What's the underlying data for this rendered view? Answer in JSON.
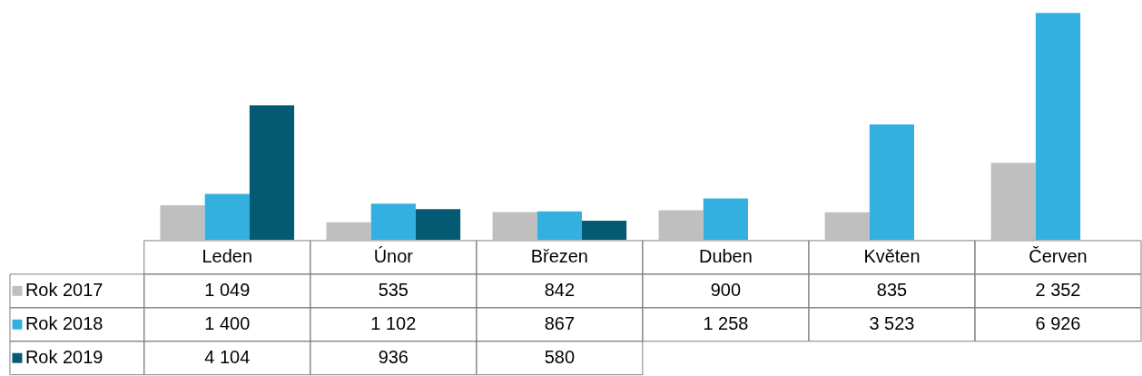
{
  "chart_data": {
    "type": "bar",
    "categories": [
      "Leden",
      "Únor",
      "Březen",
      "Duben",
      "Květen",
      "Červen"
    ],
    "legend": "bottom",
    "series": [
      {
        "name": "Rok 2017",
        "color": "#bfbfbf",
        "values": [
          1049,
          535,
          842,
          900,
          835,
          2352
        ],
        "value_labels": [
          "1 049",
          "535",
          "842",
          "900",
          "835",
          "2 352"
        ]
      },
      {
        "name": "Rok 2018",
        "color": "#33b0e0",
        "values": [
          1400,
          1102,
          867,
          1258,
          3523,
          6926
        ],
        "value_labels": [
          "1 400",
          "1 102",
          "867",
          "1 258",
          "3 523",
          "6 926"
        ]
      },
      {
        "name": "Rok 2019",
        "color": "#045a73",
        "values": [
          4104,
          936,
          580,
          null,
          null,
          null
        ],
        "value_labels": [
          "4 104",
          "936",
          "580",
          null,
          null,
          null
        ]
      }
    ]
  }
}
